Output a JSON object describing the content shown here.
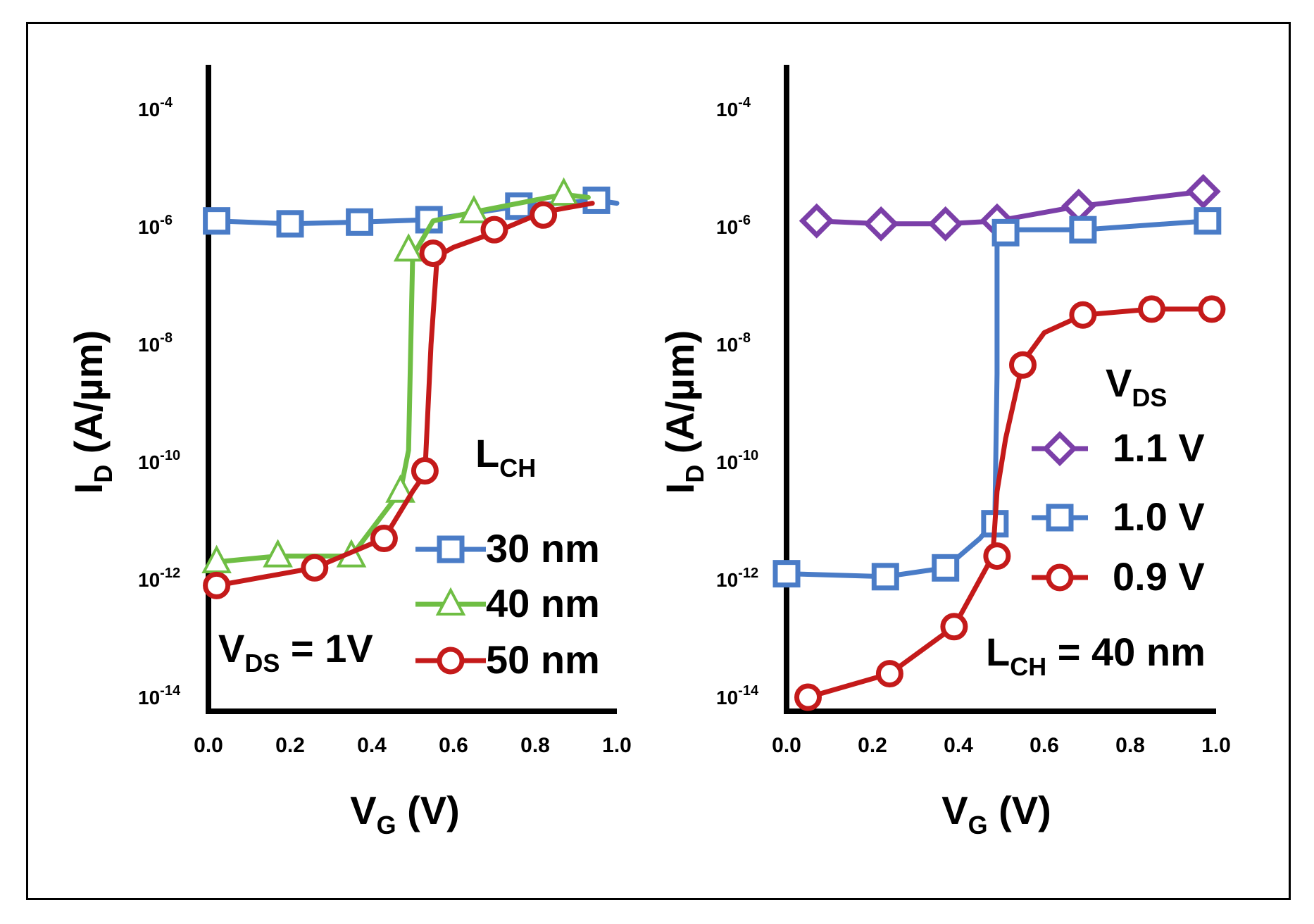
{
  "chart_data": [
    {
      "type": "line",
      "panel": "left",
      "xlabel_main": "V",
      "xlabel_sub": "G",
      "xlabel_unit": "(V)",
      "ylabel_main": "I",
      "ylabel_sub": "D",
      "ylabel_unit": "(A/µm)",
      "xlim": [
        0,
        1.0
      ],
      "ylim_log10": [
        -14.3,
        -3.4
      ],
      "x_ticks": [
        "0.0",
        "0.2",
        "0.4",
        "0.6",
        "0.8",
        "1.0"
      ],
      "y_ticks": [
        {
          "base": "10",
          "exp": "-4",
          "value": -4
        },
        {
          "base": "10",
          "exp": "-6",
          "value": -6
        },
        {
          "base": "10",
          "exp": "-8",
          "value": -8
        },
        {
          "base": "10",
          "exp": "-10",
          "value": -10
        },
        {
          "base": "10",
          "exp": "-12",
          "value": -12
        },
        {
          "base": "10",
          "exp": "-14",
          "value": -14
        }
      ],
      "legend_title_main": "L",
      "legend_title_sub": "CH",
      "annotation": {
        "main": "V",
        "sub": "DS",
        "rest": "= 1V"
      },
      "series": [
        {
          "name": "30 nm",
          "color": "#4a7cc7",
          "marker": "square",
          "line_x": [
            0.02,
            0.2,
            0.37,
            0.54,
            0.76,
            0.95,
            1.0
          ],
          "line_logy": [
            -5.9,
            -5.95,
            -5.92,
            -5.88,
            -5.65,
            -5.55,
            -5.6
          ],
          "marker_x": [
            0.02,
            0.2,
            0.37,
            0.54,
            0.76,
            0.95
          ],
          "marker_logy": [
            -5.9,
            -5.95,
            -5.92,
            -5.88,
            -5.65,
            -5.55
          ]
        },
        {
          "name": "40 nm",
          "color": "#6fbe44",
          "marker": "triangle",
          "line_x": [
            0.02,
            0.17,
            0.35,
            0.47,
            0.49,
            0.5,
            0.55,
            0.65,
            0.87,
            0.93
          ],
          "line_logy": [
            -11.7,
            -11.6,
            -11.6,
            -10.5,
            -9.8,
            -6.5,
            -5.9,
            -5.75,
            -5.45,
            -5.5
          ],
          "marker_x": [
            0.02,
            0.17,
            0.35,
            0.47,
            0.49,
            0.65,
            0.87
          ],
          "marker_logy": [
            -11.7,
            -11.6,
            -11.6,
            -10.5,
            -6.4,
            -5.75,
            -5.45
          ]
        },
        {
          "name": "50 nm",
          "color": "#c41a1a",
          "marker": "circle",
          "line_x": [
            0.02,
            0.26,
            0.43,
            0.5,
            0.53,
            0.545,
            0.56,
            0.6,
            0.7,
            0.82,
            0.94
          ],
          "line_logy": [
            -12.1,
            -11.8,
            -11.3,
            -10.5,
            -10.2,
            -8.0,
            -6.5,
            -6.35,
            -6.1,
            -5.75,
            -5.6
          ],
          "marker_x": [
            0.02,
            0.26,
            0.43,
            0.53,
            0.55,
            0.7,
            0.82
          ],
          "marker_logy": [
            -12.1,
            -11.8,
            -11.3,
            -10.15,
            -6.45,
            -6.05,
            -5.8
          ]
        }
      ]
    },
    {
      "type": "line",
      "panel": "right",
      "xlabel_main": "V",
      "xlabel_sub": "G",
      "xlabel_unit": "(V)",
      "ylabel_main": "I",
      "ylabel_sub": "D",
      "ylabel_unit": "(A/µm)",
      "xlim": [
        0,
        1.0
      ],
      "ylim_log10": [
        -14.3,
        -3.4
      ],
      "x_ticks": [
        "0.0",
        "0.2",
        "0.4",
        "0.6",
        "0.8",
        "1.0"
      ],
      "y_ticks": [
        {
          "base": "10",
          "exp": "-4",
          "value": -4
        },
        {
          "base": "10",
          "exp": "-6",
          "value": -6
        },
        {
          "base": "10",
          "exp": "-8",
          "value": -8
        },
        {
          "base": "10",
          "exp": "-10",
          "value": -10
        },
        {
          "base": "10",
          "exp": "-12",
          "value": -12
        },
        {
          "base": "10",
          "exp": "-14",
          "value": -14
        }
      ],
      "legend_title_main": "V",
      "legend_title_sub": "DS",
      "annotation": {
        "main": "L",
        "sub": "CH",
        "rest": "= 40 nm"
      },
      "series": [
        {
          "name": "1.1 V",
          "color": "#7b3fa8",
          "marker": "diamond",
          "line_x": [
            0.07,
            0.22,
            0.37,
            0.49,
            0.68,
            0.97
          ],
          "line_logy": [
            -5.9,
            -5.95,
            -5.95,
            -5.9,
            -5.65,
            -5.4
          ],
          "marker_x": [
            0.07,
            0.22,
            0.37,
            0.49,
            0.68,
            0.97
          ],
          "marker_logy": [
            -5.9,
            -5.95,
            -5.95,
            -5.9,
            -5.65,
            -5.4
          ]
        },
        {
          "name": "1.0 V",
          "color": "#4a7cc7",
          "marker": "square",
          "line_x": [
            0.0,
            0.23,
            0.37,
            0.45,
            0.485,
            0.49,
            0.49,
            0.52,
            0.69,
            0.98
          ],
          "line_logy": [
            -11.9,
            -11.95,
            -11.8,
            -11.3,
            -11.0,
            -8.5,
            -6.1,
            -6.05,
            -6.05,
            -5.9
          ],
          "marker_x": [
            0.0,
            0.23,
            0.37,
            0.485,
            0.51,
            0.69,
            0.98
          ],
          "marker_logy": [
            -11.9,
            -11.95,
            -11.8,
            -11.05,
            -6.1,
            -6.05,
            -5.9
          ]
        },
        {
          "name": "0.9 V",
          "color": "#c41a1a",
          "marker": "circle",
          "line_x": [
            0.05,
            0.24,
            0.39,
            0.48,
            0.49,
            0.51,
            0.55,
            0.6,
            0.69,
            0.85,
            0.99
          ],
          "line_logy": [
            -14.0,
            -13.6,
            -12.8,
            -11.6,
            -10.5,
            -9.6,
            -8.3,
            -7.8,
            -7.5,
            -7.4,
            -7.4
          ],
          "marker_x": [
            0.05,
            0.24,
            0.39,
            0.49,
            0.55,
            0.69,
            0.85,
            0.99
          ],
          "marker_logy": [
            -14.0,
            -13.6,
            -12.8,
            -11.6,
            -8.35,
            -7.5,
            -7.4,
            -7.4
          ]
        }
      ]
    }
  ]
}
